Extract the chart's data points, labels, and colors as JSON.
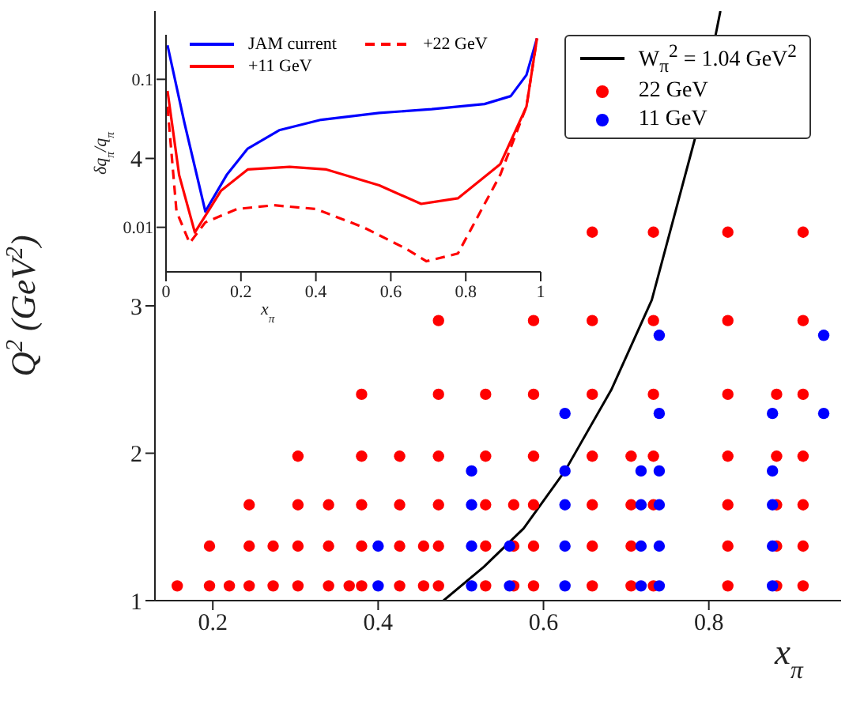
{
  "chart_data": [
    {
      "type": "scatter",
      "xlabel": "x$_{π}$",
      "ylabel": "Q$^{2}$ (GeV$^{2}$)",
      "xlim": [
        0.13,
        0.96
      ],
      "ylim": [
        1,
        5
      ],
      "xticks": [
        0.2,
        0.4,
        0.6,
        0.8
      ],
      "yticks": [
        1,
        2,
        3,
        4
      ],
      "grid": false,
      "legend": "top right",
      "marker": "circle",
      "series": [
        {
          "name": "W$_{π}$$^{2}$ = 1.04 GeV$^{2}$",
          "type": "line",
          "marker": "none",
          "line_style": "solid",
          "color": "#000000",
          "x": [
            0.479,
            0.528,
            0.576,
            0.626,
            0.682,
            0.731,
            0.783,
            0.814
          ],
          "values": [
            1.0,
            1.23,
            1.49,
            1.88,
            2.43,
            3.04,
            4.13,
            5.0
          ]
        },
        {
          "name": "22 GeV",
          "color": "#ff0000",
          "x": [
            0.157,
            0.196,
            0.22,
            0.244,
            0.273,
            0.303,
            0.34,
            0.365,
            0.38,
            0.426,
            0.455,
            0.473,
            0.53,
            0.564,
            0.588,
            0.659,
            0.706,
            0.733,
            0.823,
            0.882,
            0.914,
            0.196,
            0.244,
            0.273,
            0.303,
            0.34,
            0.38,
            0.426,
            0.455,
            0.473,
            0.53,
            0.564,
            0.588,
            0.659,
            0.706,
            0.823,
            0.882,
            0.914,
            0.244,
            0.303,
            0.34,
            0.38,
            0.426,
            0.473,
            0.53,
            0.564,
            0.588,
            0.659,
            0.706,
            0.733,
            0.823,
            0.882,
            0.914,
            0.303,
            0.38,
            0.426,
            0.473,
            0.53,
            0.588,
            0.659,
            0.706,
            0.733,
            0.823,
            0.882,
            0.914,
            0.38,
            0.473,
            0.53,
            0.588,
            0.659,
            0.733,
            0.823,
            0.882,
            0.914,
            0.473,
            0.588,
            0.659,
            0.733,
            0.823,
            0.914,
            0.659,
            0.733,
            0.823,
            0.914
          ],
          "values": [
            1.1,
            1.1,
            1.1,
            1.1,
            1.1,
            1.1,
            1.1,
            1.1,
            1.1,
            1.1,
            1.1,
            1.1,
            1.1,
            1.1,
            1.1,
            1.1,
            1.1,
            1.1,
            1.1,
            1.1,
            1.1,
            1.37,
            1.37,
            1.37,
            1.37,
            1.37,
            1.37,
            1.37,
            1.37,
            1.37,
            1.37,
            1.37,
            1.37,
            1.37,
            1.37,
            1.37,
            1.37,
            1.37,
            1.65,
            1.65,
            1.65,
            1.65,
            1.65,
            1.65,
            1.65,
            1.65,
            1.65,
            1.65,
            1.65,
            1.65,
            1.65,
            1.65,
            1.65,
            1.98,
            1.98,
            1.98,
            1.98,
            1.98,
            1.98,
            1.98,
            1.98,
            1.98,
            1.98,
            1.98,
            1.98,
            2.4,
            2.4,
            2.4,
            2.4,
            2.4,
            2.4,
            2.4,
            2.4,
            2.4,
            2.9,
            2.9,
            2.9,
            2.9,
            2.9,
            2.9,
            3.5,
            3.5,
            3.5,
            3.5
          ]
        },
        {
          "name": "11 GeV",
          "color": "#0000ff",
          "x": [
            0.4,
            0.513,
            0.559,
            0.626,
            0.718,
            0.74,
            0.877,
            0.4,
            0.513,
            0.559,
            0.626,
            0.718,
            0.74,
            0.877,
            0.513,
            0.626,
            0.718,
            0.74,
            0.877,
            0.513,
            0.626,
            0.718,
            0.74,
            0.877,
            0.626,
            0.74,
            0.877,
            0.939,
            0.74,
            0.939
          ],
          "values": [
            1.1,
            1.1,
            1.1,
            1.1,
            1.1,
            1.1,
            1.1,
            1.37,
            1.37,
            1.37,
            1.37,
            1.37,
            1.37,
            1.37,
            1.65,
            1.65,
            1.65,
            1.65,
            1.65,
            1.88,
            1.88,
            1.88,
            1.88,
            1.88,
            2.27,
            2.27,
            2.27,
            2.27,
            2.8,
            2.8
          ]
        }
      ]
    },
    {
      "type": "line",
      "xlabel": "x$_{π}$",
      "ylabel": "δq$_{π}$/q$_{π}$",
      "xlim": [
        0,
        1
      ],
      "ylim": [
        0.005,
        0.2
      ],
      "xticks": [
        0,
        0.2,
        0.4,
        0.6,
        0.8,
        1
      ],
      "yticks": [
        0.01,
        0.1
      ],
      "log": "y",
      "grid": false,
      "legend": "top",
      "marker": "none",
      "series": [
        {
          "name": "JAM current",
          "color": "#0000ff",
          "line_style": "solid",
          "x": [
            0.004,
            0.049,
            0.105,
            0.162,
            0.218,
            0.302,
            0.414,
            0.569,
            0.709,
            0.85,
            0.92,
            0.962,
            0.99
          ],
          "values": [
            0.17,
            0.051,
            0.0128,
            0.0226,
            0.034,
            0.0453,
            0.0533,
            0.0593,
            0.0628,
            0.0681,
            0.077,
            0.107,
            0.189
          ]
        },
        {
          "name": "+11 GeV",
          "color": "#ff0000",
          "line_style": "solid",
          "x": [
            0.004,
            0.035,
            0.077,
            0.147,
            0.218,
            0.33,
            0.428,
            0.569,
            0.681,
            0.779,
            0.892,
            0.962,
            0.99
          ],
          "values": [
            0.0835,
            0.0226,
            0.00923,
            0.0177,
            0.0246,
            0.0256,
            0.0246,
            0.0192,
            0.0144,
            0.0157,
            0.0267,
            0.0654,
            0.189
          ]
        },
        {
          "name": "+22 GeV",
          "color": "#ff0000",
          "line_style": "dashed",
          "x": [
            0.004,
            0.028,
            0.063,
            0.105,
            0.19,
            0.288,
            0.4,
            0.527,
            0.639,
            0.695,
            0.779,
            0.892,
            0.962,
            0.99
          ],
          "values": [
            0.0654,
            0.0128,
            0.00783,
            0.0108,
            0.0133,
            0.0141,
            0.0133,
            0.01,
            0.0072,
            0.0059,
            0.00665,
            0.0226,
            0.0654,
            0.189
          ]
        }
      ]
    }
  ]
}
